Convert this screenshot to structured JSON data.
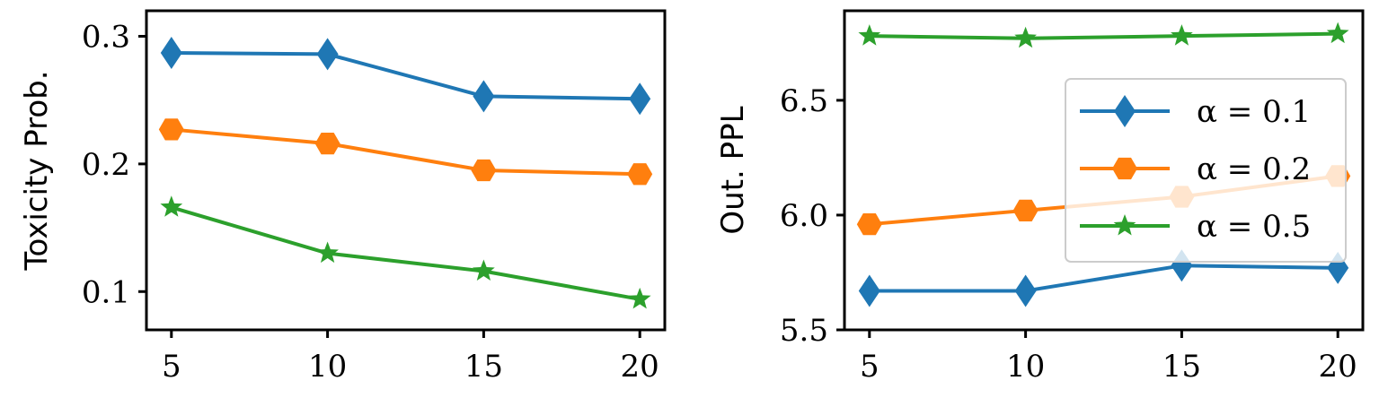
{
  "colors": {
    "alpha_0_1": "#1f77b4",
    "alpha_0_2": "#ff7f0e",
    "alpha_0_5": "#2ca02c"
  },
  "chart_data": [
    {
      "type": "line",
      "title": "",
      "xlabel": "",
      "ylabel": "Toxicity Prob.",
      "x": [
        5,
        10,
        15,
        20
      ],
      "xticks": [
        "5",
        "10",
        "15",
        "20"
      ],
      "xlim": [
        4.2,
        20.8
      ],
      "yticks": [
        "0.1",
        "0.2",
        "0.3"
      ],
      "ylim": [
        0.07,
        0.32
      ],
      "grid": false,
      "series": [
        {
          "name": "α = 0.1",
          "marker": "diamond",
          "color": "#1f77b4",
          "values": [
            0.287,
            0.286,
            0.253,
            0.251
          ]
        },
        {
          "name": "α = 0.2",
          "marker": "hexagon",
          "color": "#ff7f0e",
          "values": [
            0.227,
            0.216,
            0.195,
            0.192
          ]
        },
        {
          "name": "α = 0.5",
          "marker": "star",
          "color": "#2ca02c",
          "values": [
            0.166,
            0.13,
            0.116,
            0.094
          ]
        }
      ]
    },
    {
      "type": "line",
      "title": "",
      "xlabel": "",
      "ylabel": "Out. PPL",
      "x": [
        5,
        10,
        15,
        20
      ],
      "xticks": [
        "5",
        "10",
        "15",
        "20"
      ],
      "xlim": [
        4.2,
        20.8
      ],
      "yticks": [
        "5.5",
        "6.0",
        "6.5"
      ],
      "ylim": [
        5.5,
        6.89
      ],
      "grid": false,
      "legend_position": "right",
      "legend": [
        "α = 0.1",
        "α = 0.2",
        "α = 0.5"
      ],
      "series": [
        {
          "name": "α = 0.1",
          "marker": "diamond",
          "color": "#1f77b4",
          "values": [
            5.67,
            5.67,
            5.78,
            5.77
          ]
        },
        {
          "name": "α = 0.2",
          "marker": "hexagon",
          "color": "#ff7f0e",
          "values": [
            5.96,
            6.02,
            6.08,
            6.17
          ]
        },
        {
          "name": "α = 0.5",
          "marker": "star",
          "color": "#2ca02c",
          "values": [
            6.78,
            6.77,
            6.78,
            6.79
          ]
        }
      ]
    }
  ]
}
